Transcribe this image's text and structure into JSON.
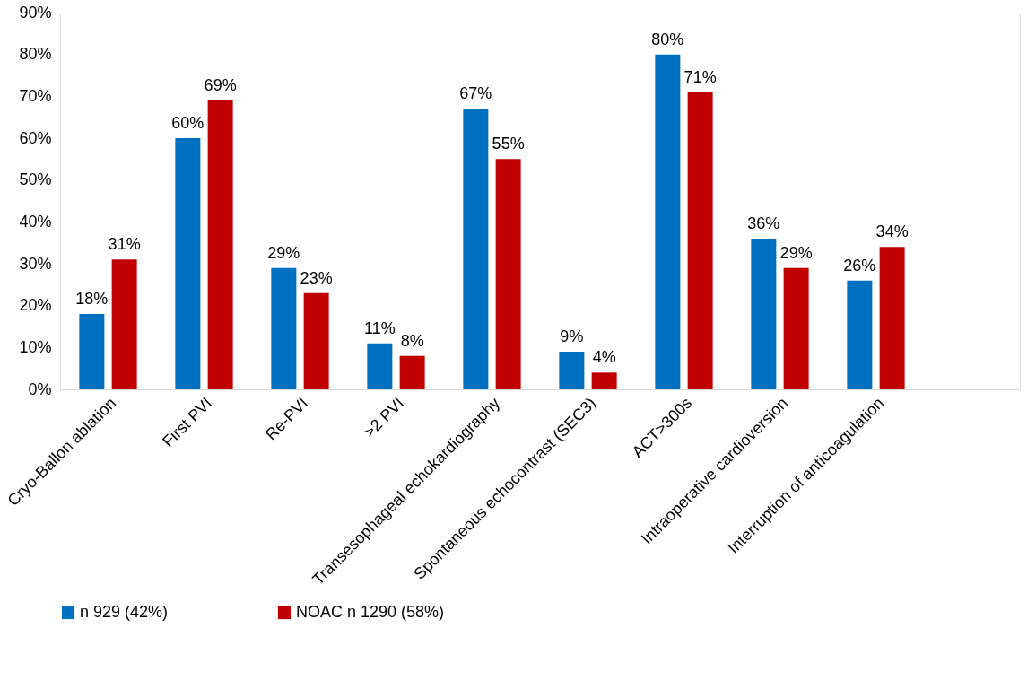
{
  "chart_data": {
    "type": "bar",
    "categories": [
      "Cryo-Ballon ablation",
      "First PVI",
      "Re-PVI",
      ">2 PVI",
      "Transesophageal echokardiography",
      "Spontaneous echocontrast (SEC3)",
      "ACT>300s",
      "Intraoperative cardioversion",
      "Interruption of anticoagulation",
      null
    ],
    "series": [
      {
        "name": "n 929 (42%)",
        "color": "#0070c0",
        "values": [
          18,
          60,
          29,
          11,
          67,
          9,
          80,
          36,
          26,
          null
        ],
        "value_labels": [
          "18%",
          "60%",
          "29%",
          "11%",
          "67%",
          "9%",
          "80%",
          "36%",
          "26%",
          null
        ]
      },
      {
        "name": "NOAC n 1290 (58%)",
        "color": "#c00000",
        "values": [
          31,
          69,
          23,
          8,
          55,
          4,
          71,
          29,
          34,
          null
        ],
        "value_labels": [
          "31%",
          "69%",
          "23%",
          "8%",
          "55%",
          "4%",
          "71%",
          "29%",
          "34%",
          null
        ]
      }
    ],
    "ylim": [
      0,
      90
    ],
    "yticks": [
      {
        "value": 0,
        "label": "0%"
      },
      {
        "value": 10,
        "label": "10%"
      },
      {
        "value": 20,
        "label": "20%"
      },
      {
        "value": 30,
        "label": "30%"
      },
      {
        "value": 40,
        "label": "40%"
      },
      {
        "value": 50,
        "label": "50%"
      },
      {
        "value": 60,
        "label": "60%"
      },
      {
        "value": 70,
        "label": "70%"
      },
      {
        "value": 80,
        "label": "80%"
      },
      {
        "value": 90,
        "label": "90%"
      }
    ],
    "legend": "bottom"
  }
}
